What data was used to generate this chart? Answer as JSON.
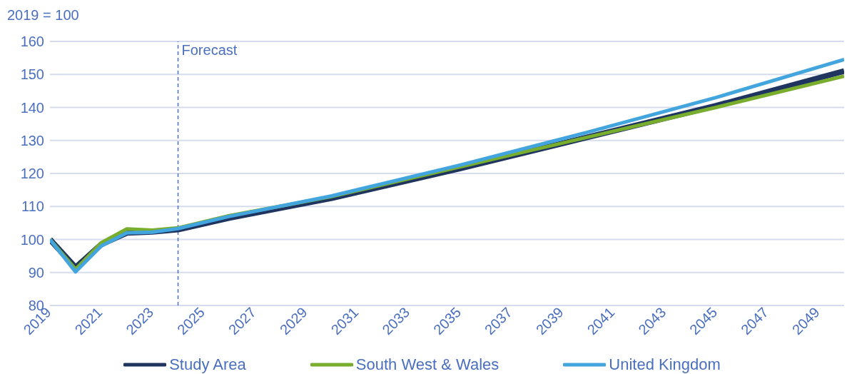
{
  "chart_data": {
    "type": "line",
    "ylabel": "2019 = 100",
    "x": [
      2019,
      2020,
      2021,
      2022,
      2023,
      2024,
      2026,
      2030,
      2035,
      2040,
      2045,
      2050
    ],
    "series": [
      {
        "name": "Study Area",
        "color": "#1f3560",
        "values": [
          100,
          91.5,
          98.5,
          102,
          102.3,
          103,
          106.5,
          112.5,
          121.5,
          131,
          140.5,
          151
        ]
      },
      {
        "name": "South West & Wales",
        "color": "#78ad2e",
        "values": [
          100,
          91,
          99,
          103.2,
          102.8,
          103.5,
          107.2,
          113,
          122,
          131,
          140,
          149.5
        ]
      },
      {
        "name": "United Kingdom",
        "color": "#42a5de",
        "values": [
          100,
          90.2,
          98,
          102,
          102.2,
          103.3,
          107,
          113.2,
          122.5,
          132.5,
          143,
          154.5
        ]
      }
    ],
    "xlim": [
      2019,
      2050
    ],
    "xticks": [
      2019,
      2021,
      2023,
      2025,
      2027,
      2029,
      2031,
      2033,
      2035,
      2037,
      2039,
      2041,
      2043,
      2045,
      2047,
      2049
    ],
    "ylim": [
      80,
      160
    ],
    "yticks": [
      80,
      90,
      100,
      110,
      120,
      130,
      140,
      150,
      160
    ],
    "grid": "y",
    "legend": "bottom",
    "marker": "none",
    "line_style": "solid",
    "ref_lines": [
      {
        "axis": "x",
        "value": 2024,
        "label": "Forecast",
        "color": "#4a6fc1",
        "line_style": "dashed"
      }
    ]
  }
}
